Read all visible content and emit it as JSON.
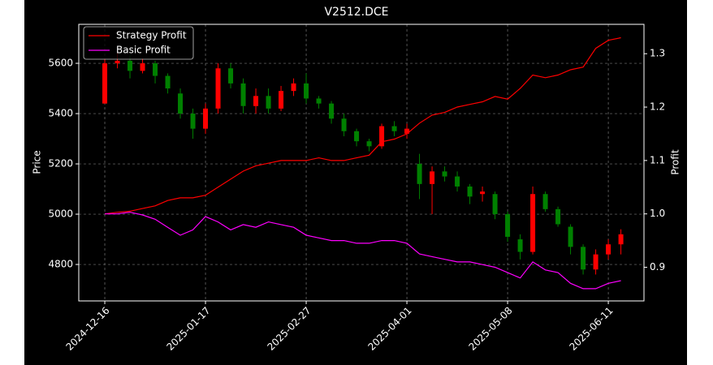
{
  "chart_data": {
    "type": "candlestick",
    "title": "V2512.DCE",
    "y_label": "Price",
    "y2_label": "Profit",
    "up_color": "#ff0000",
    "down_color": "#008000",
    "x": [
      0,
      3,
      6,
      9,
      12,
      15,
      18,
      21,
      24,
      27,
      30,
      33,
      36,
      39,
      42,
      45,
      48,
      51,
      54,
      57,
      60,
      63,
      66,
      69,
      72,
      75,
      78,
      81,
      84,
      87,
      90,
      93,
      96,
      99,
      102,
      105,
      108,
      111,
      114,
      117,
      120,
      123
    ],
    "ohlc": {
      "open": [
        5440,
        5600,
        5610,
        5570,
        5600,
        5550,
        5480,
        5400,
        5340,
        5420,
        5580,
        5520,
        5430,
        5470,
        5420,
        5490,
        5520,
        5460,
        5440,
        5380,
        5330,
        5290,
        5270,
        5350,
        5320,
        5200,
        5120,
        5170,
        5150,
        5110,
        5080,
        5080,
        5000,
        4900,
        4850,
        5080,
        5020,
        4950,
        4870,
        4780,
        4840,
        4880
      ],
      "high": [
        5620,
        5640,
        5630,
        5620,
        5610,
        5560,
        5500,
        5420,
        5440,
        5600,
        5600,
        5540,
        5500,
        5500,
        5510,
        5540,
        5560,
        5470,
        5450,
        5400,
        5340,
        5300,
        5360,
        5370,
        5360,
        5240,
        5190,
        5190,
        5170,
        5120,
        5110,
        5090,
        5010,
        4920,
        5110,
        5090,
        5030,
        4960,
        4880,
        4860,
        4900,
        4940
      ],
      "low": [
        5440,
        5580,
        5540,
        5560,
        5520,
        5480,
        5380,
        5300,
        5320,
        5400,
        5500,
        5400,
        5400,
        5400,
        5410,
        5470,
        5440,
        5420,
        5360,
        5310,
        5270,
        5250,
        5260,
        5310,
        5300,
        5060,
        5000,
        5130,
        5090,
        5040,
        5050,
        4980,
        4890,
        4820,
        4840,
        5010,
        4950,
        4840,
        4760,
        4760,
        4820,
        4840
      ],
      "close": [
        5600,
        5610,
        5570,
        5600,
        5550,
        5500,
        5400,
        5340,
        5420,
        5580,
        5520,
        5430,
        5470,
        5420,
        5490,
        5520,
        5460,
        5440,
        5380,
        5330,
        5290,
        5270,
        5350,
        5330,
        5340,
        5120,
        5170,
        5150,
        5110,
        5070,
        5090,
        5000,
        4910,
        4850,
        5080,
        5020,
        4960,
        4870,
        4780,
        4840,
        4880,
        4920
      ]
    },
    "series": [
      {
        "name": "Strategy Profit",
        "color": "#ff0000",
        "axis": "y2",
        "values": [
          1.0,
          1.003,
          1.005,
          1.01,
          1.015,
          1.025,
          1.03,
          1.03,
          1.035,
          1.05,
          1.065,
          1.08,
          1.09,
          1.095,
          1.1,
          1.1,
          1.1,
          1.105,
          1.1,
          1.1,
          1.105,
          1.11,
          1.135,
          1.14,
          1.15,
          1.17,
          1.185,
          1.19,
          1.2,
          1.205,
          1.21,
          1.22,
          1.215,
          1.235,
          1.26,
          1.255,
          1.26,
          1.27,
          1.275,
          1.31,
          1.325,
          1.33
        ]
      },
      {
        "name": "Basic Profit",
        "color": "#ff00ff",
        "axis": "y2",
        "values": [
          1.0,
          1.0,
          1.003,
          0.998,
          0.99,
          0.975,
          0.96,
          0.97,
          0.995,
          0.985,
          0.97,
          0.98,
          0.975,
          0.985,
          0.98,
          0.975,
          0.96,
          0.955,
          0.95,
          0.95,
          0.945,
          0.945,
          0.95,
          0.95,
          0.945,
          0.925,
          0.92,
          0.915,
          0.91,
          0.91,
          0.905,
          0.9,
          0.89,
          0.88,
          0.91,
          0.895,
          0.89,
          0.87,
          0.86,
          0.86,
          0.87,
          0.875
        ]
      }
    ],
    "xlim": [
      -6.2,
      128.5
    ],
    "xticks": [
      {
        "value": 0,
        "label": "2024-12-16"
      },
      {
        "value": 24,
        "label": "2025-01-17"
      },
      {
        "value": 48,
        "label": "2025-02-27"
      },
      {
        "value": 72,
        "label": "2025-04-01"
      },
      {
        "value": 96,
        "label": "2025-05-08"
      },
      {
        "value": 120,
        "label": "2025-06-11"
      }
    ],
    "ylim": [
      4655,
      5755
    ],
    "yticks": [
      4800,
      5000,
      5200,
      5400,
      5600
    ],
    "y2lim": [
      0.837,
      1.355
    ],
    "y2ticks": [
      0.9,
      {
        "value": 1.0,
        "label": "1.0"
      },
      1.1,
      1.2,
      1.3
    ],
    "grid": true,
    "legend": "upper left"
  }
}
